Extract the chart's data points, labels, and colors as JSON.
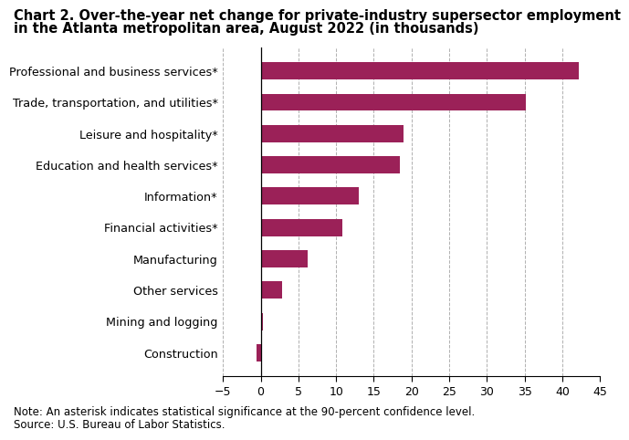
{
  "title_line1": "Chart 2. Over-the-year net change for private-industry supersector employment",
  "title_line2": "in the Atlanta metropolitan area, August 2022 (in thousands)",
  "categories": [
    "Construction",
    "Mining and logging",
    "Other services",
    "Manufacturing",
    "Financial activities*",
    "Information*",
    "Education and health services*",
    "Leisure and hospitality*",
    "Trade, transportation, and utilities*",
    "Professional and business services*"
  ],
  "values": [
    -0.5,
    0.3,
    2.8,
    6.2,
    10.8,
    13.0,
    18.5,
    18.9,
    35.2,
    42.2
  ],
  "bar_color": "#9b2158",
  "xlim": [
    -5,
    45
  ],
  "xticks": [
    -5,
    0,
    5,
    10,
    15,
    20,
    25,
    30,
    35,
    40,
    45
  ],
  "grid_color": "#b0b0b0",
  "background_color": "#ffffff",
  "note": "Note: An asterisk indicates statistical significance at the 90-percent confidence level.",
  "source": "Source: U.S. Bureau of Labor Statistics.",
  "title_fontsize": 10.5,
  "label_fontsize": 9.2,
  "tick_fontsize": 9,
  "note_fontsize": 8.5
}
